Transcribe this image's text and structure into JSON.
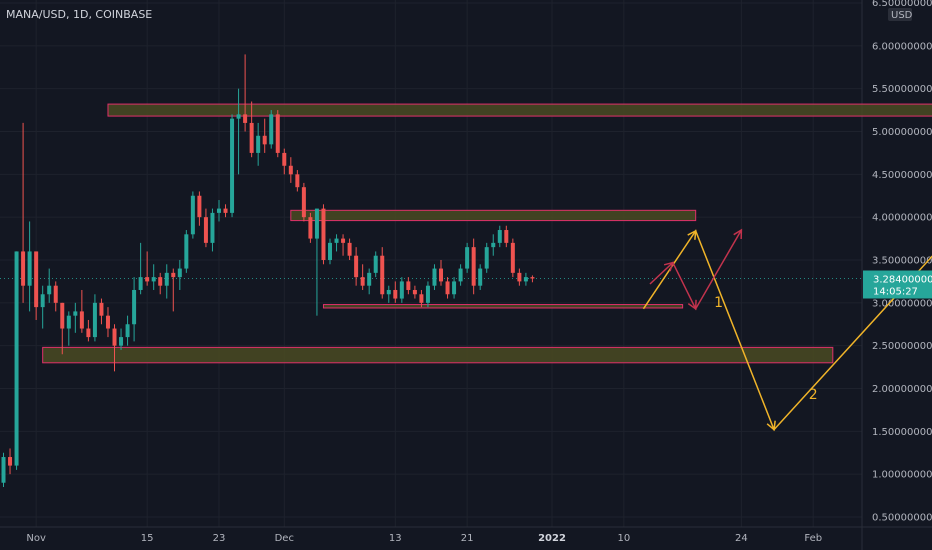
{
  "header": {
    "symbol": "MANA/USD, 1D, COINBASE"
  },
  "axis": {
    "currency": "USD"
  },
  "price_label": {
    "value": "3.28400000",
    "countdown": "14:05:27"
  },
  "colors": {
    "background": "#131722",
    "up": "#26a69a",
    "down": "#ef5350",
    "zone_fill": "#4a4a22",
    "zone_stroke": "#e0306a",
    "arrow_yellow": "#f0b429",
    "arrow_red": "#c2334d",
    "grid": "#1e222d",
    "current_price": "#26a69a"
  },
  "chart_data": {
    "type": "candlestick",
    "title": "MANA/USD, 1D, COINBASE",
    "xlabel": "",
    "ylabel": "USD",
    "ylim": [
      0.5,
      6.5
    ],
    "yticks": [
      "6.50000000",
      "6.00000000",
      "5.50000000",
      "5.00000000",
      "4.50000000",
      "4.00000000",
      "3.50000000",
      "3.00000000",
      "2.50000000",
      "2.00000000",
      "1.50000000",
      "1.00000000",
      "0.50000000"
    ],
    "xticks": [
      {
        "label": "Nov",
        "bold": false
      },
      {
        "label": "15",
        "bold": false
      },
      {
        "label": "23",
        "bold": false
      },
      {
        "label": "Dec",
        "bold": false
      },
      {
        "label": "13",
        "bold": false
      },
      {
        "label": "21",
        "bold": false
      },
      {
        "label": "2022",
        "bold": true
      },
      {
        "label": "10",
        "bold": false
      },
      {
        "label": "24",
        "bold": false
      },
      {
        "label": "Feb",
        "bold": false
      }
    ],
    "grid": true,
    "candles": [
      [
        0.9,
        1.25,
        0.85,
        1.2
      ],
      [
        1.2,
        1.3,
        1.0,
        1.1
      ],
      [
        1.1,
        3.6,
        1.05,
        3.6
      ],
      [
        3.6,
        5.1,
        3.0,
        3.2
      ],
      [
        3.2,
        3.95,
        2.9,
        3.6
      ],
      [
        3.6,
        3.6,
        2.8,
        2.95
      ],
      [
        2.95,
        3.2,
        2.7,
        3.1
      ],
      [
        3.1,
        3.4,
        3.0,
        3.2
      ],
      [
        3.2,
        3.25,
        2.9,
        3.0
      ],
      [
        3.0,
        3.0,
        2.4,
        2.7
      ],
      [
        2.7,
        2.9,
        2.5,
        2.85
      ],
      [
        2.85,
        3.0,
        2.65,
        2.9
      ],
      [
        2.9,
        3.15,
        2.65,
        2.7
      ],
      [
        2.7,
        2.8,
        2.55,
        2.6
      ],
      [
        2.6,
        3.1,
        2.55,
        3.0
      ],
      [
        3.0,
        3.05,
        2.75,
        2.85
      ],
      [
        2.85,
        2.95,
        2.6,
        2.7
      ],
      [
        2.7,
        2.75,
        2.2,
        2.5
      ],
      [
        2.5,
        2.7,
        2.45,
        2.6
      ],
      [
        2.6,
        2.85,
        2.5,
        2.75
      ],
      [
        2.75,
        3.3,
        2.55,
        3.15
      ],
      [
        3.15,
        3.7,
        3.1,
        3.3
      ],
      [
        3.3,
        3.6,
        3.2,
        3.25
      ],
      [
        3.25,
        3.45,
        3.15,
        3.3
      ],
      [
        3.3,
        3.35,
        3.1,
        3.2
      ],
      [
        3.2,
        3.45,
        3.05,
        3.35
      ],
      [
        3.35,
        3.4,
        2.9,
        3.3
      ],
      [
        3.3,
        3.5,
        3.15,
        3.4
      ],
      [
        3.4,
        3.85,
        3.35,
        3.8
      ],
      [
        3.8,
        4.3,
        3.75,
        4.25
      ],
      [
        4.25,
        4.3,
        3.9,
        4.0
      ],
      [
        4.0,
        4.1,
        3.65,
        3.7
      ],
      [
        3.7,
        4.1,
        3.6,
        4.05
      ],
      [
        4.05,
        4.2,
        3.95,
        4.1
      ],
      [
        4.1,
        4.15,
        4.0,
        4.05
      ],
      [
        4.05,
        5.2,
        4.0,
        5.15
      ],
      [
        5.15,
        5.5,
        4.5,
        5.2
      ],
      [
        5.2,
        5.9,
        5.0,
        5.1
      ],
      [
        5.1,
        5.35,
        4.7,
        4.75
      ],
      [
        4.75,
        5.1,
        4.6,
        4.95
      ],
      [
        4.95,
        5.15,
        4.75,
        4.85
      ],
      [
        4.85,
        5.25,
        4.8,
        5.2
      ],
      [
        5.2,
        5.25,
        4.7,
        4.75
      ],
      [
        4.75,
        4.8,
        4.5,
        4.6
      ],
      [
        4.6,
        4.7,
        4.4,
        4.5
      ],
      [
        4.5,
        4.55,
        4.3,
        4.35
      ],
      [
        4.35,
        4.4,
        3.95,
        4.0
      ],
      [
        4.0,
        4.05,
        3.7,
        3.75
      ],
      [
        3.75,
        4.1,
        2.85,
        4.1
      ],
      [
        4.1,
        4.15,
        3.45,
        3.5
      ],
      [
        3.5,
        3.75,
        3.45,
        3.7
      ],
      [
        3.7,
        3.8,
        3.6,
        3.75
      ],
      [
        3.75,
        3.8,
        3.55,
        3.7
      ],
      [
        3.7,
        3.75,
        3.5,
        3.55
      ],
      [
        3.55,
        3.65,
        3.2,
        3.3
      ],
      [
        3.3,
        3.45,
        3.15,
        3.2
      ],
      [
        3.2,
        3.4,
        3.1,
        3.35
      ],
      [
        3.35,
        3.6,
        3.3,
        3.55
      ],
      [
        3.55,
        3.65,
        3.05,
        3.1
      ],
      [
        3.1,
        3.2,
        3.0,
        3.15
      ],
      [
        3.15,
        3.25,
        3.0,
        3.05
      ],
      [
        3.05,
        3.3,
        3.0,
        3.25
      ],
      [
        3.25,
        3.3,
        3.1,
        3.15
      ],
      [
        3.15,
        3.2,
        3.05,
        3.1
      ],
      [
        3.1,
        3.15,
        2.95,
        3.0
      ],
      [
        3.0,
        3.25,
        2.95,
        3.2
      ],
      [
        3.2,
        3.45,
        3.15,
        3.4
      ],
      [
        3.4,
        3.5,
        3.2,
        3.25
      ],
      [
        3.25,
        3.3,
        3.05,
        3.1
      ],
      [
        3.1,
        3.3,
        3.05,
        3.25
      ],
      [
        3.25,
        3.45,
        3.2,
        3.4
      ],
      [
        3.4,
        3.7,
        3.35,
        3.65
      ],
      [
        3.65,
        3.75,
        3.1,
        3.2
      ],
      [
        3.2,
        3.45,
        3.15,
        3.4
      ],
      [
        3.4,
        3.7,
        3.35,
        3.65
      ],
      [
        3.65,
        3.8,
        3.55,
        3.7
      ],
      [
        3.7,
        3.9,
        3.65,
        3.85
      ],
      [
        3.85,
        3.9,
        3.65,
        3.7
      ],
      [
        3.7,
        3.75,
        3.3,
        3.35
      ],
      [
        3.35,
        3.4,
        3.2,
        3.25
      ],
      [
        3.25,
        3.35,
        3.2,
        3.3
      ],
      [
        3.3,
        3.32,
        3.24,
        3.284
      ]
    ],
    "zones": [
      {
        "x_start": 16,
        "x_end": 149,
        "y_low": 5.18,
        "y_high": 5.32
      },
      {
        "x_start": 44,
        "x_end": 106,
        "y_low": 3.96,
        "y_high": 4.08
      },
      {
        "x_start": 49,
        "x_end": 104,
        "y_low": 2.94,
        "y_high": 2.98
      },
      {
        "x_start": 6,
        "x_end": 127,
        "y_low": 2.3,
        "y_high": 2.48
      }
    ],
    "projections": [
      {
        "color": "yellow",
        "points": [
          [
            98,
            2.93
          ],
          [
            106,
            3.84
          ],
          [
            118,
            1.52
          ],
          [
            146,
            3.86
          ]
        ],
        "labels": [
          {
            "text": "1",
            "x": 109.5,
            "y": 2.95
          },
          {
            "text": "2",
            "x": 124,
            "y": 1.88
          }
        ]
      },
      {
        "color": "red",
        "points": [
          [
            99,
            3.22
          ],
          [
            102.5,
            3.47
          ],
          [
            106,
            2.93
          ],
          [
            113,
            3.85
          ]
        ],
        "labels": []
      }
    ],
    "current_price": 3.284
  }
}
